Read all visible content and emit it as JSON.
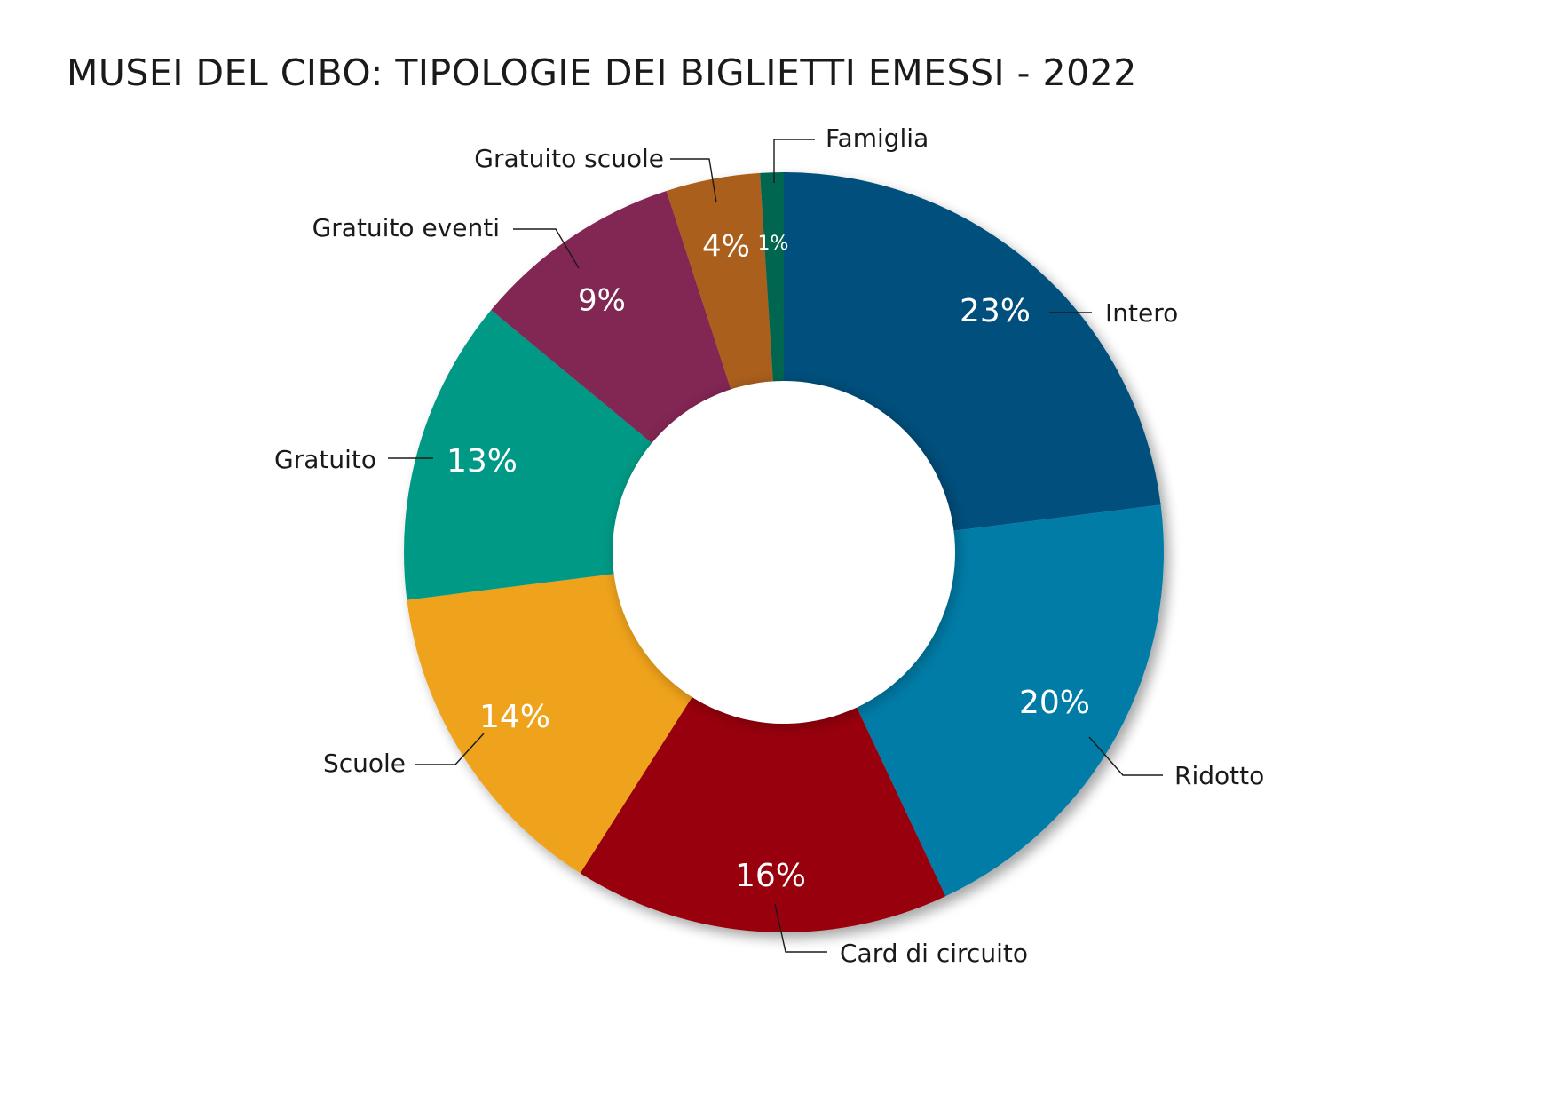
{
  "title": "MUSEI DEL CIBO: TIPOLOGIE DEI BIGLIETTI EMESSI - 2022",
  "chart_data": {
    "type": "pie",
    "variant": "donut",
    "title": "MUSEI DEL CIBO: TIPOLOGIE DEI BIGLIETTI EMESSI - 2022",
    "unit": "%",
    "slices": [
      {
        "label": "Intero",
        "value": 23,
        "value_label": "23%",
        "color": "#04507c"
      },
      {
        "label": "Ridotto",
        "value": 20,
        "value_label": "20%",
        "color": "#007ca7"
      },
      {
        "label": "Card di circuito",
        "value": 16,
        "value_label": "16%",
        "color": "#980009"
      },
      {
        "label": "Scuole",
        "value": 14,
        "value_label": "14%",
        "color": "#efa21f"
      },
      {
        "label": "Gratuito",
        "value": 13,
        "value_label": "13%",
        "color": "#039985"
      },
      {
        "label": "Gratuito eventi",
        "value": 9,
        "value_label": "9%",
        "color": "#822852"
      },
      {
        "label": "Gratuito scuole",
        "value": 4,
        "value_label": "4%",
        "color": "#aa5f1d"
      },
      {
        "label": "Famiglia",
        "value": 1,
        "value_label": "1%",
        "color": "#036650"
      }
    ]
  }
}
